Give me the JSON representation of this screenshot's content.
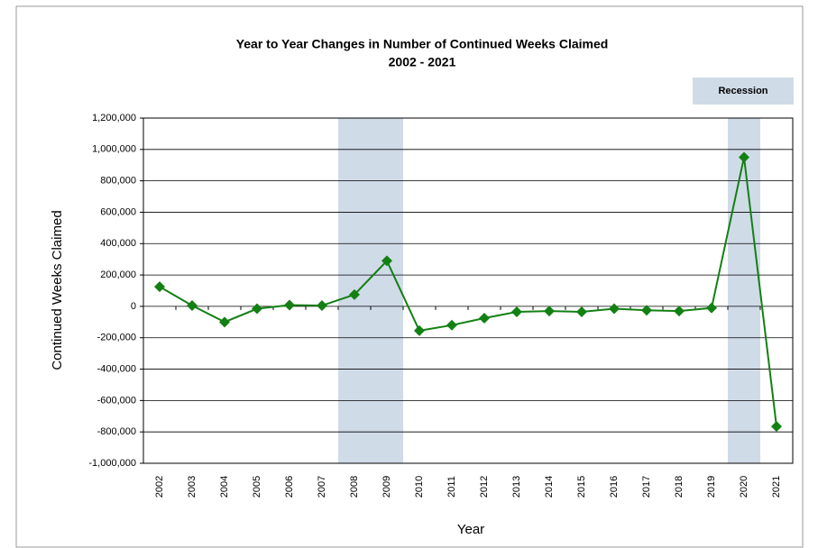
{
  "chart_data": {
    "type": "line",
    "title": "Year to Year Changes in Number of Continued Weeks Claimed",
    "subtitle": "2002 - 2021",
    "x_label": "Year",
    "y_label": "Continued Weeks  Claimed",
    "categories": [
      "2002",
      "2003",
      "2004",
      "2005",
      "2006",
      "2007",
      "2008",
      "2009",
      "2010",
      "2011",
      "2012",
      "2013",
      "2014",
      "2015",
      "2016",
      "2017",
      "2018",
      "2019",
      "2020",
      "2021"
    ],
    "series": [
      {
        "name": "Continued Weeks Claimed",
        "color": "#138013",
        "values": [
          125000,
          5000,
          -100000,
          -15000,
          8000,
          5000,
          75000,
          290000,
          -155000,
          -120000,
          -75000,
          -35000,
          -30000,
          -35000,
          -15000,
          -25000,
          -30000,
          -10000,
          950000,
          -765000
        ]
      }
    ],
    "recession": {
      "name": "Recession",
      "color": "#d0dbe8",
      "ranges": [
        [
          "2008",
          "2009"
        ],
        [
          "2020",
          "2020"
        ]
      ]
    },
    "ylim": [
      -1000000,
      1200000
    ],
    "yticks": [
      {
        "value": -1000000,
        "label": "-1,000,000"
      },
      {
        "value": -800000,
        "label": "-800,000"
      },
      {
        "value": -600000,
        "label": "-600,000"
      },
      {
        "value": -400000,
        "label": "-400,000"
      },
      {
        "value": -200000,
        "label": "-200,000"
      },
      0,
      {
        "value": 200000,
        "label": "200,000"
      },
      {
        "value": 400000,
        "label": "400,000"
      },
      {
        "value": 600000,
        "label": "600,000"
      },
      {
        "value": 800000,
        "label": "800,000"
      },
      {
        "value": 1000000,
        "label": "1,000,000"
      },
      {
        "value": 1200000,
        "label": "1,200,000"
      }
    ],
    "grid": true
  }
}
